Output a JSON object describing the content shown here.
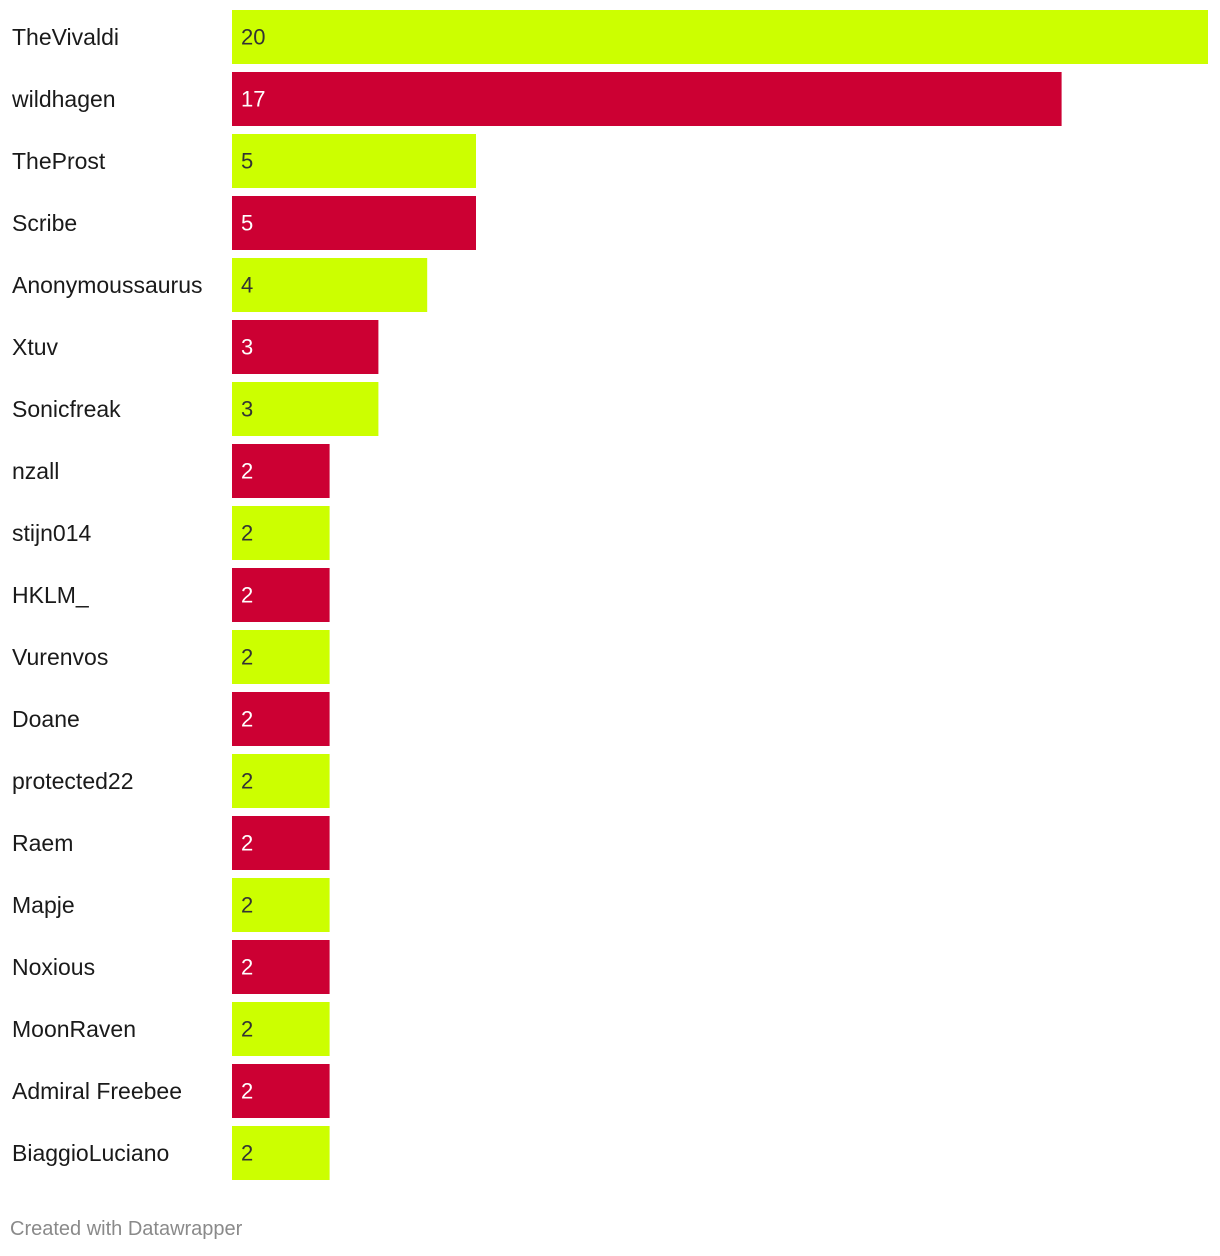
{
  "chart_data": {
    "type": "bar",
    "orientation": "horizontal",
    "categories": [
      "TheVivaldi",
      "wildhagen",
      "TheProst",
      "Scribe",
      "Anonymoussaurus",
      "Xtuv",
      "Sonicfreak",
      "nzall",
      "stijn014",
      "HKLM_",
      "Vurenvos",
      "Doane",
      "protected22",
      "Raem",
      "Mapje",
      "Noxious",
      "MoonRaven",
      "Admiral Freebee",
      "BiaggioLuciano"
    ],
    "values": [
      20,
      17,
      5,
      5,
      4,
      3,
      3,
      2,
      2,
      2,
      2,
      2,
      2,
      2,
      2,
      2,
      2,
      2,
      2
    ],
    "xlim": [
      0,
      20
    ],
    "grid": false,
    "data_labels": "inside-left",
    "bar_colors": [
      "#ccff00",
      "#cc0033"
    ],
    "label_colors": [
      "#333333",
      "#ffffff"
    ]
  },
  "footer": {
    "credit": "Created with Datawrapper"
  }
}
